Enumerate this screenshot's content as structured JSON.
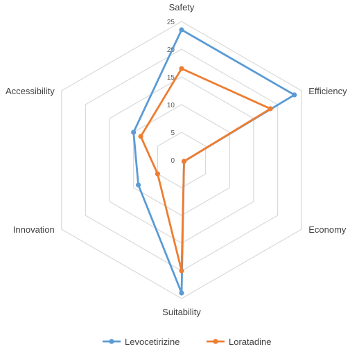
{
  "chart_data": {
    "type": "radar",
    "categories": [
      "Safety",
      "Efficiency",
      "Economy",
      "Suitability",
      "Innovation",
      "Accessibility"
    ],
    "ticks": [
      "0",
      "5",
      "10",
      "15",
      "20",
      "25"
    ],
    "rlim": [
      0,
      25
    ],
    "grid": true,
    "legend_position": "bottom",
    "series": [
      {
        "name": "Levocetirizine",
        "color": "#5b9bd5",
        "values": [
          23.5,
          23.5,
          0.5,
          24,
          9,
          10
        ]
      },
      {
        "name": "Loratadine",
        "color": "#ed7d31",
        "values": [
          16.5,
          18.5,
          0.5,
          20,
          5,
          8.5
        ]
      }
    ]
  }
}
